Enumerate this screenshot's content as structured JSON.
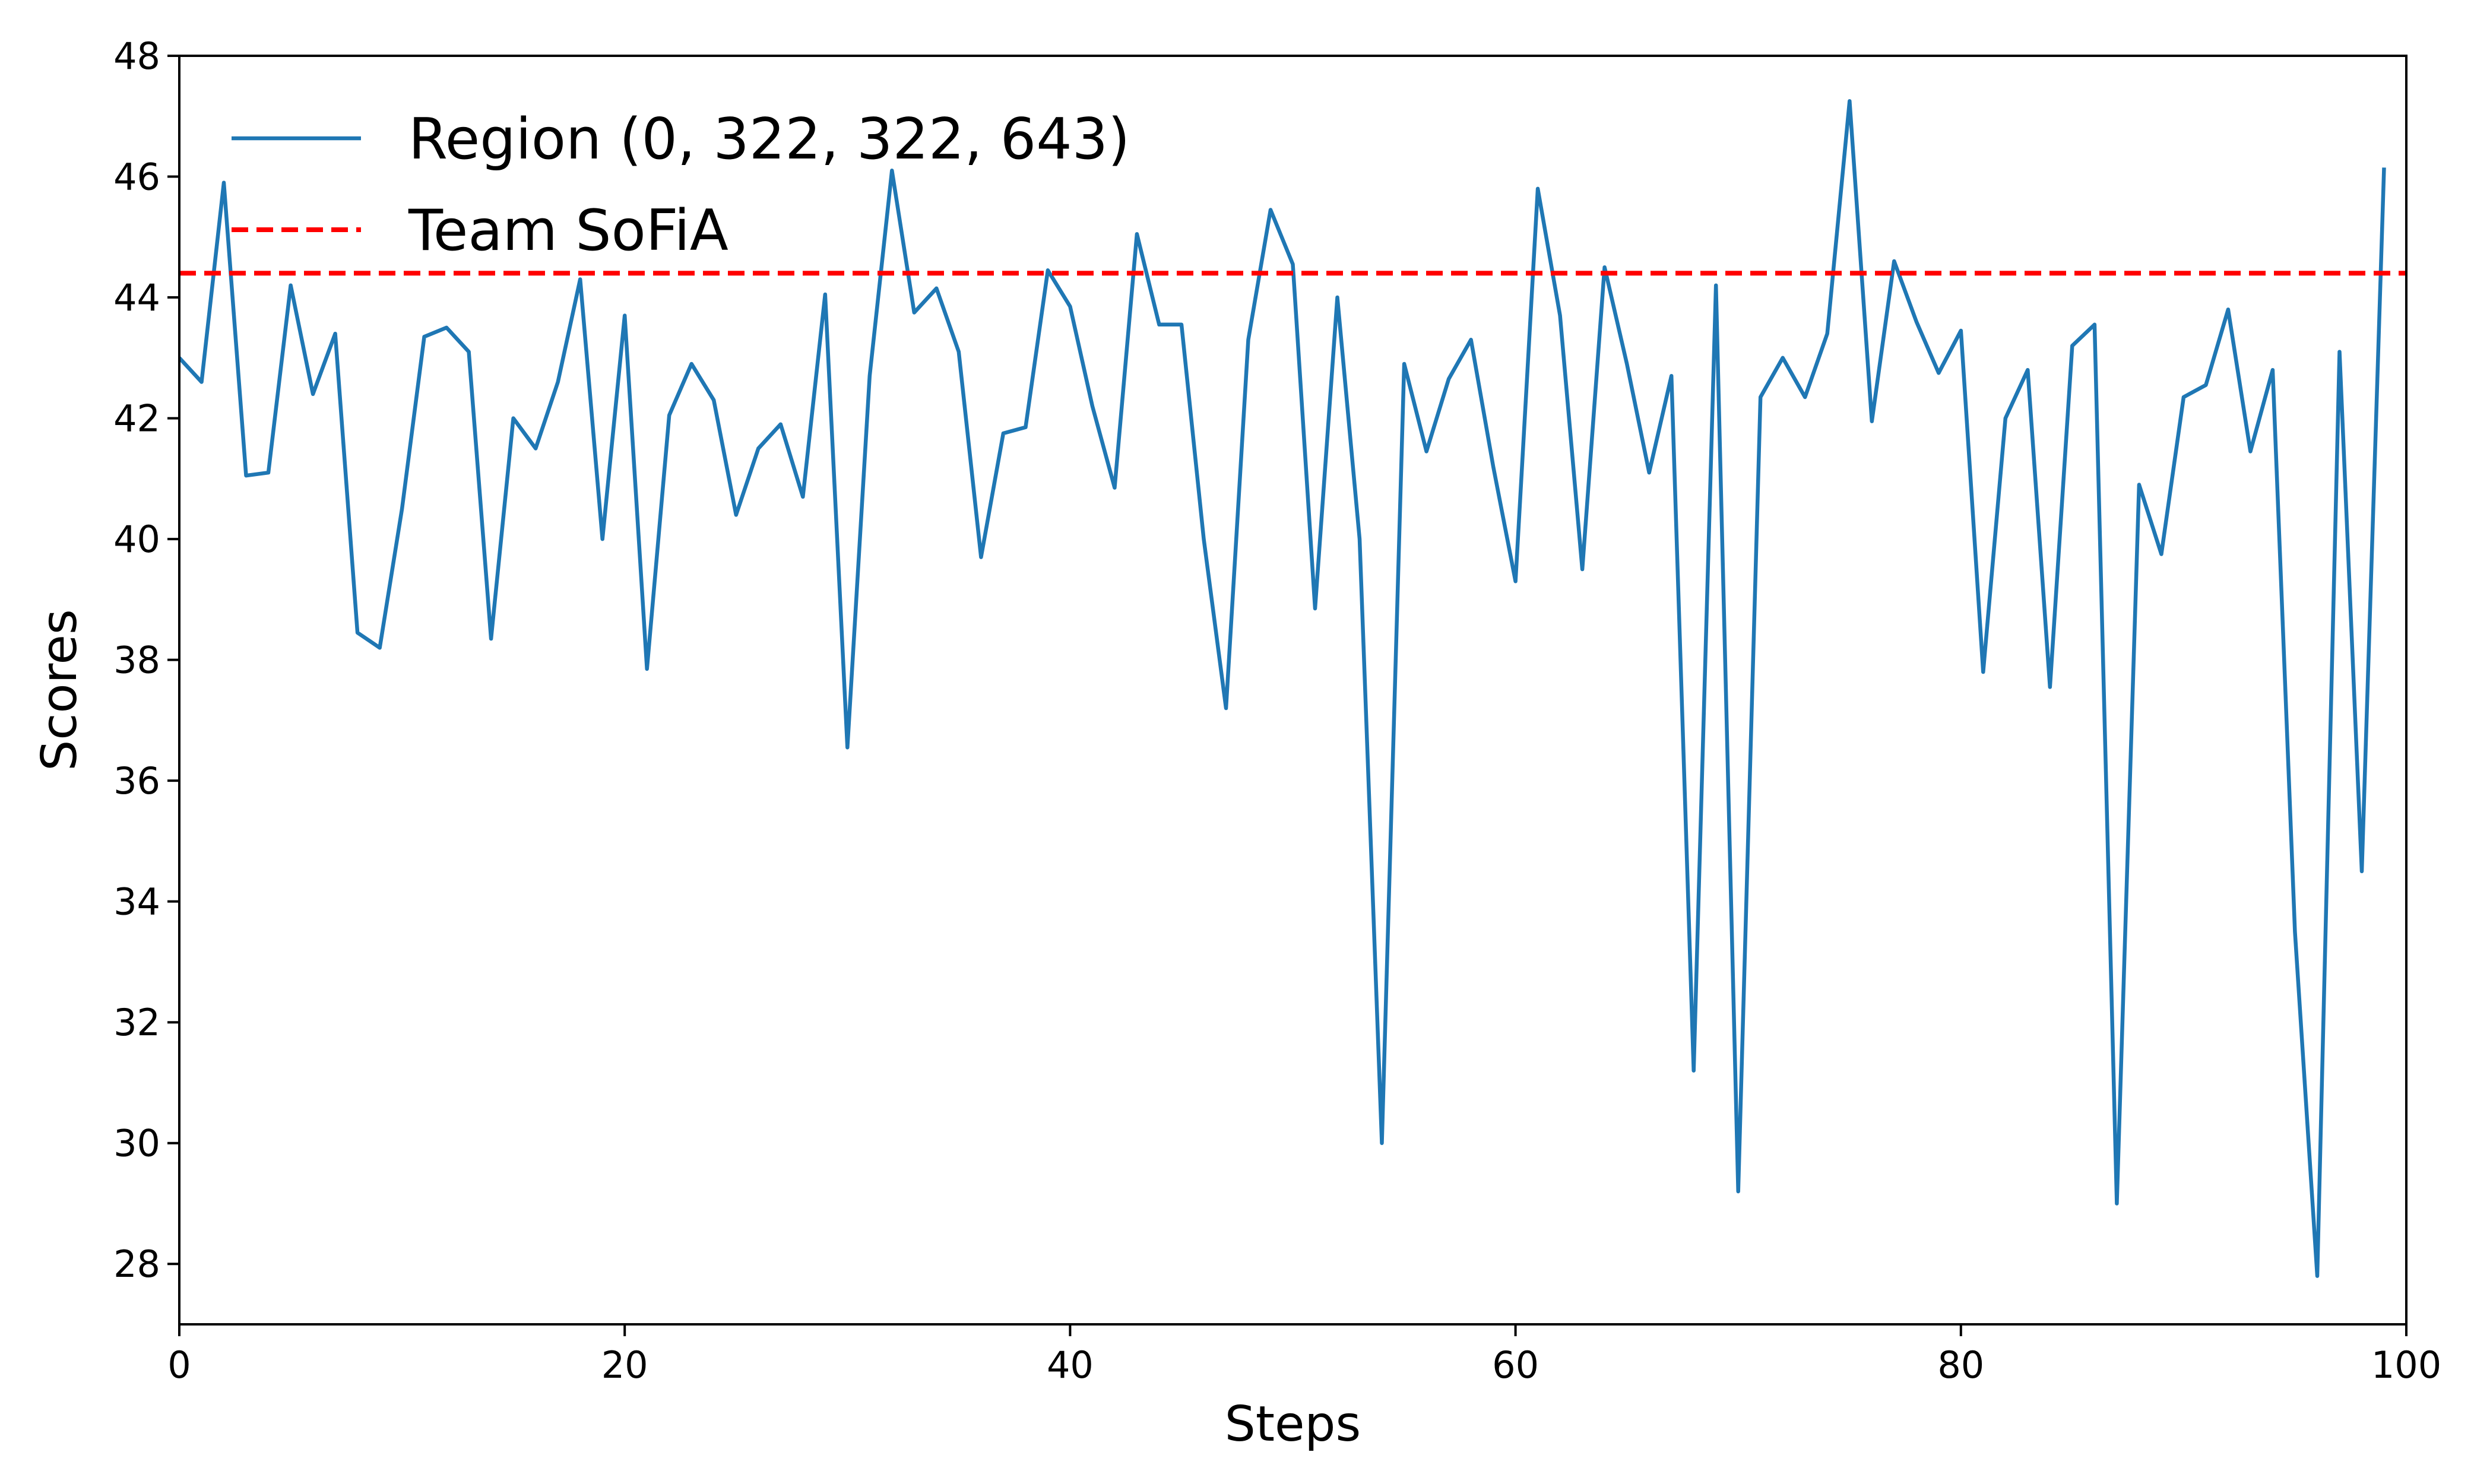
{
  "chart_data": {
    "type": "line",
    "xlabel": "Steps",
    "ylabel": "Scores",
    "xlim": [
      0,
      100
    ],
    "ylim": [
      27,
      48
    ],
    "xticks": [
      "0",
      "20",
      "40",
      "60",
      "80",
      "100"
    ],
    "yticks": [
      "28",
      "30",
      "32",
      "34",
      "36",
      "38",
      "40",
      "42",
      "44",
      "46",
      "48"
    ],
    "grid": false,
    "legend_position": "top-left",
    "series": [
      {
        "name": "Region (0, 322, 322, 643)",
        "color": "#1f77b4",
        "style": "solid",
        "x": [
          0,
          1,
          2,
          3,
          4,
          5,
          6,
          7,
          8,
          9,
          10,
          11,
          12,
          13,
          14,
          15,
          16,
          17,
          18,
          19,
          20,
          21,
          22,
          23,
          24,
          25,
          26,
          27,
          28,
          29,
          30,
          31,
          32,
          33,
          34,
          35,
          36,
          37,
          38,
          39,
          40,
          41,
          42,
          43,
          44,
          45,
          46,
          47,
          48,
          49,
          50,
          51,
          52,
          53,
          54,
          55,
          56,
          57,
          58,
          59,
          60,
          61,
          62,
          63,
          64,
          65,
          66,
          67,
          68,
          69,
          70,
          71,
          72,
          73,
          74,
          75,
          76,
          77,
          78,
          79,
          80,
          81,
          82,
          83,
          84,
          85,
          86,
          87,
          88,
          89,
          90,
          91,
          92,
          93,
          94,
          95,
          96,
          97,
          98,
          99
        ],
        "y": [
          43.0,
          42.6,
          45.9,
          41.05,
          41.1,
          44.2,
          42.4,
          43.4,
          38.45,
          38.2,
          40.5,
          43.35,
          43.5,
          43.1,
          38.35,
          42.0,
          41.5,
          42.6,
          44.3,
          40.0,
          43.7,
          37.85,
          42.05,
          42.9,
          42.3,
          40.4,
          41.5,
          41.9,
          40.7,
          44.05,
          36.55,
          42.7,
          46.1,
          43.75,
          44.15,
          43.1,
          39.7,
          41.75,
          41.85,
          44.45,
          43.85,
          42.2,
          40.85,
          45.05,
          43.55,
          43.55,
          40.0,
          37.2,
          43.3,
          45.45,
          44.55,
          38.85,
          44.0,
          40.0,
          30.0,
          42.9,
          41.45,
          42.65,
          43.3,
          41.2,
          39.3,
          45.8,
          43.7,
          39.5,
          44.5,
          42.9,
          41.1,
          42.7,
          31.2,
          44.2,
          29.2,
          42.35,
          43.0,
          42.35,
          43.4,
          47.25,
          41.95,
          44.6,
          43.6,
          42.75,
          43.45,
          37.8,
          42.0,
          42.8,
          37.55,
          43.2,
          43.55,
          29.0,
          40.9,
          39.75,
          42.35,
          42.55,
          43.8,
          41.45,
          42.8,
          33.5,
          27.8,
          43.1,
          34.5,
          46.15
        ]
      },
      {
        "name": "Team SoFiA",
        "color": "#ff0000",
        "style": "dashed",
        "x": [
          0,
          100
        ],
        "y": [
          44.4,
          44.4
        ]
      }
    ]
  }
}
